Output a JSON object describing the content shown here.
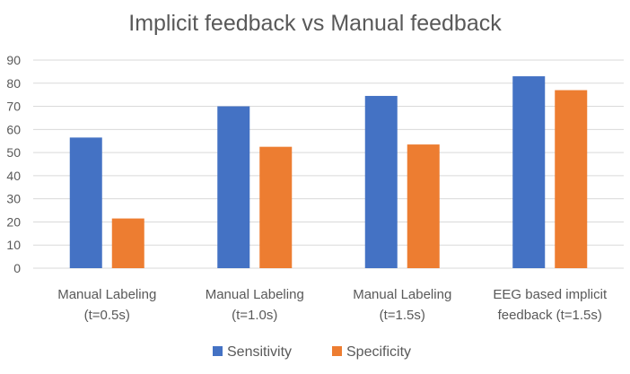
{
  "chart_data": {
    "type": "bar",
    "title": "Implicit feedback vs Manual feedback",
    "xlabel": "",
    "ylabel": "",
    "ylim": [
      0,
      90
    ],
    "yticks": [
      0,
      10,
      20,
      30,
      40,
      50,
      60,
      70,
      80,
      90
    ],
    "grid": true,
    "legend_position": "bottom",
    "categories": [
      [
        "Manual Labeling",
        "(t=0.5s)"
      ],
      [
        "Manual Labeling",
        "(t=1.0s)"
      ],
      [
        "Manual Labeling",
        "(t=1.5s)"
      ],
      [
        "EEG based implicit",
        "feedback (t=1.5s)"
      ]
    ],
    "series": [
      {
        "name": "Sensitivity",
        "color": "#4472C4",
        "values": [
          56.5,
          70,
          74.5,
          83
        ]
      },
      {
        "name": "Specificity",
        "color": "#ED7D31",
        "values": [
          21.5,
          52.5,
          53.5,
          77
        ]
      }
    ]
  }
}
